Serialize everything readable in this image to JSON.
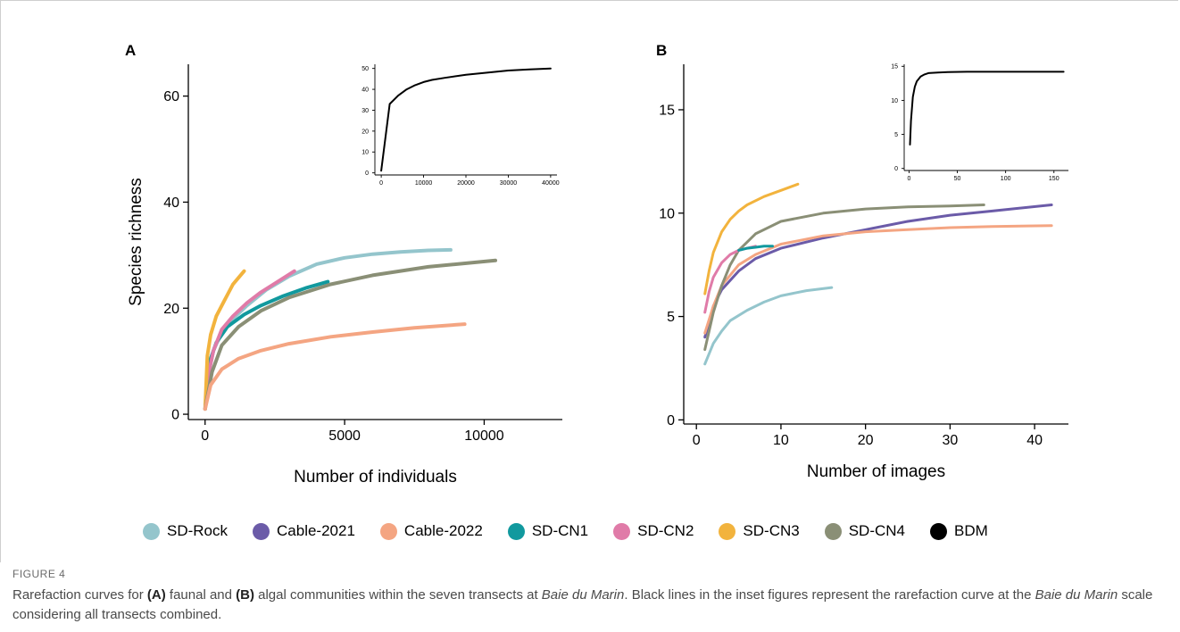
{
  "legend": [
    {
      "name": "SD-Rock",
      "color": "#94c5cc"
    },
    {
      "name": "Cable-2021",
      "color": "#6b5ba8"
    },
    {
      "name": "Cable-2022",
      "color": "#f4a582"
    },
    {
      "name": "SD-CN1",
      "color": "#11999e"
    },
    {
      "name": "SD-CN2",
      "color": "#e07ba8"
    },
    {
      "name": "SD-CN3",
      "color": "#f2b33d"
    },
    {
      "name": "SD-CN4",
      "color": "#8a8f76"
    },
    {
      "name": "BDM",
      "color": "#000000"
    }
  ],
  "caption": {
    "label": "FIGURE 4",
    "text_1": "Rarefaction curves for ",
    "a": "(A)",
    "text_2": " faunal and ",
    "b": "(B)",
    "text_3": " algal communities within the seven transects at ",
    "site_1": "Baie du Marin",
    "text_4": ". Black lines in the inset figures represent the rarefaction curve at the ",
    "site_2": "Baie du Marin",
    "text_5": " scale considering all transects combined."
  },
  "chart_data": [
    {
      "type": "line",
      "panel": "A",
      "xlabel": "Number of individuals",
      "ylabel": "Species richness",
      "xlim": [
        -600,
        12800
      ],
      "ylim": [
        -1,
        66
      ],
      "xticks": [
        0,
        5000,
        10000
      ],
      "xtick_labels": [
        "0",
        "5000",
        "10000"
      ],
      "yticks": [
        0,
        20,
        40,
        60
      ],
      "ytick_labels": [
        "0",
        "20",
        "40",
        "60"
      ],
      "series": [
        {
          "name": "SD-Rock",
          "color": "#94c5cc",
          "x": [
            0,
            100,
            300,
            600,
            1000,
            1500,
            2200,
            3000,
            4000,
            5000,
            6000,
            7000,
            8000,
            8800
          ],
          "y": [
            1,
            7,
            12,
            15.5,
            18,
            20.5,
            23.5,
            26,
            28.3,
            29.5,
            30.2,
            30.6,
            30.9,
            31
          ]
        },
        {
          "name": "SD-CN1",
          "color": "#11999e",
          "x": [
            100,
            400,
            800,
            1400,
            2000,
            2800,
            3600,
            4400
          ],
          "y": [
            9,
            13.5,
            16.5,
            18.8,
            20.5,
            22.3,
            23.8,
            25
          ]
        },
        {
          "name": "SD-CN2",
          "color": "#e07ba8",
          "x": [
            0,
            100,
            300,
            600,
            1000,
            1500,
            2000,
            2600,
            3200
          ],
          "y": [
            1,
            7,
            12,
            16,
            18.5,
            21,
            23,
            25,
            27
          ]
        },
        {
          "name": "SD-CN3",
          "color": "#f2b33d",
          "x": [
            0,
            80,
            200,
            400,
            700,
            1000,
            1400
          ],
          "y": [
            1,
            11,
            15,
            18.5,
            21.5,
            24.5,
            27
          ]
        },
        {
          "name": "SD-CN4",
          "color": "#8a8f76",
          "x": [
            0,
            250,
            600,
            1200,
            2000,
            3000,
            4500,
            6000,
            8000,
            10400
          ],
          "y": [
            1,
            8,
            13,
            16.5,
            19.5,
            22,
            24.5,
            26.2,
            27.8,
            29
          ]
        },
        {
          "name": "Cable-2022",
          "color": "#f4a582",
          "x": [
            0,
            200,
            600,
            1200,
            2000,
            3000,
            4500,
            6000,
            7500,
            9300
          ],
          "y": [
            1,
            5.5,
            8.5,
            10.5,
            12,
            13.3,
            14.6,
            15.5,
            16.3,
            17
          ]
        },
        {
          "name": "BDM",
          "color": "#000000",
          "x": [],
          "y": []
        }
      ],
      "inset": {
        "type": "line",
        "xlim": [
          -1500,
          41500
        ],
        "ylim": [
          -1,
          52
        ],
        "xticks": [
          0,
          10000,
          20000,
          30000,
          40000
        ],
        "xtick_labels": [
          "0",
          "10000",
          "20000",
          "30000",
          "40000"
        ],
        "yticks": [
          0,
          10,
          20,
          30,
          40,
          50
        ],
        "ytick_labels": [
          "0",
          "10",
          "20",
          "30",
          "40",
          "50"
        ],
        "series": [
          {
            "name": "BDM",
            "color": "#000000",
            "x": [
              0,
              2000,
              4000,
              6000,
              8000,
              10000,
              12000,
              15000,
              20000,
              25000,
              30000,
              35000,
              40000
            ],
            "y": [
              1,
              33,
              37,
              40,
              42,
              43.5,
              44.5,
              45.5,
              47,
              48,
              49,
              49.5,
              50
            ]
          }
        ]
      }
    },
    {
      "type": "line",
      "panel": "B",
      "xlabel": "Number of images",
      "ylabel": "",
      "xlim": [
        -1.5,
        44
      ],
      "ylim": [
        -0.2,
        17.2
      ],
      "xticks": [
        0,
        10,
        20,
        30,
        40
      ],
      "xtick_labels": [
        "0",
        "10",
        "20",
        "30",
        "40"
      ],
      "yticks": [
        0,
        5,
        10,
        15
      ],
      "ytick_labels": [
        "0",
        "5",
        "10",
        "15"
      ],
      "series": [
        {
          "name": "Cable-2021",
          "color": "#6b5ba8",
          "x": [
            1,
            2,
            3,
            5,
            7,
            10,
            15,
            20,
            25,
            30,
            35,
            42
          ],
          "y": [
            4,
            5.5,
            6.3,
            7.2,
            7.8,
            8.3,
            8.8,
            9.2,
            9.6,
            9.9,
            10.1,
            10.4
          ]
        },
        {
          "name": "Cable-2022",
          "color": "#f4a582",
          "x": [
            1,
            2,
            3,
            5,
            7,
            10,
            15,
            20,
            25,
            30,
            35,
            42
          ],
          "y": [
            4.2,
            5.5,
            6.5,
            7.5,
            8,
            8.5,
            8.9,
            9.1,
            9.2,
            9.3,
            9.35,
            9.4
          ]
        },
        {
          "name": "SD-CN4",
          "color": "#8a8f76",
          "x": [
            1,
            2,
            3,
            4,
            5,
            7,
            10,
            15,
            20,
            25,
            30,
            34
          ],
          "y": [
            3.4,
            5.2,
            6.5,
            7.5,
            8.2,
            9,
            9.6,
            10,
            10.2,
            10.3,
            10.35,
            10.4
          ]
        },
        {
          "name": "SD-Rock",
          "color": "#94c5cc",
          "x": [
            1,
            2,
            3,
            4,
            6,
            8,
            10,
            13,
            16
          ],
          "y": [
            2.7,
            3.7,
            4.3,
            4.8,
            5.3,
            5.7,
            6,
            6.25,
            6.4
          ]
        },
        {
          "name": "SD-CN2",
          "color": "#e07ba8",
          "x": [
            1,
            1.5,
            2,
            3,
            4,
            5,
            6,
            7
          ],
          "y": [
            5.2,
            6.2,
            6.9,
            7.6,
            8,
            8.2,
            8.3,
            8.4
          ]
        },
        {
          "name": "SD-CN1",
          "color": "#11999e",
          "x": [
            5,
            6,
            7,
            8,
            9
          ],
          "y": [
            8.2,
            8.3,
            8.35,
            8.4,
            8.4
          ]
        },
        {
          "name": "SD-CN3",
          "color": "#f2b33d",
          "x": [
            1,
            1.5,
            2,
            3,
            4,
            5,
            6,
            8,
            10,
            12
          ],
          "y": [
            6.1,
            7.2,
            8.1,
            9.1,
            9.7,
            10.1,
            10.4,
            10.8,
            11.1,
            11.4
          ]
        },
        {
          "name": "BDM",
          "color": "#000000",
          "x": [],
          "y": []
        }
      ],
      "inset": {
        "type": "line",
        "xlim": [
          -5,
          165
        ],
        "ylim": [
          -0.3,
          15.3
        ],
        "xticks": [
          0,
          50,
          100,
          150
        ],
        "xtick_labels": [
          "0",
          "50",
          "100",
          "150"
        ],
        "yticks": [
          0,
          5,
          10,
          15
        ],
        "ytick_labels": [
          "0",
          "5",
          "10",
          "15"
        ],
        "series": [
          {
            "name": "BDM",
            "color": "#000000",
            "x": [
              1,
              2,
              4,
              6,
              8,
              12,
              16,
              20,
              30,
              40,
              60,
              80,
              100,
              120,
              160
            ],
            "y": [
              3.5,
              7,
              10.5,
              12,
              12.8,
              13.5,
              13.8,
              14,
              14.1,
              14.15,
              14.2,
              14.2,
              14.2,
              14.2,
              14.2
            ]
          }
        ]
      }
    }
  ]
}
